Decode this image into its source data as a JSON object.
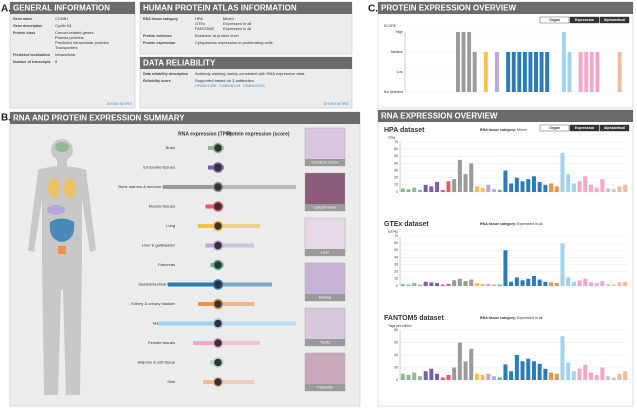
{
  "panel_labels": [
    "A.",
    "B.",
    "C."
  ],
  "general": {
    "title": "GENERAL INFORMATION",
    "more": "SHOW MORE",
    "rows": [
      {
        "label": "Gene name",
        "lines": [
          [
            "CCNB1"
          ]
        ]
      },
      {
        "label": "Gene description",
        "lines": [
          [
            "Cyclin B1"
          ]
        ]
      },
      {
        "label": "Protein class",
        "lines": [
          [
            "Cancer-related genes"
          ],
          [
            "Plasma proteins"
          ],
          [
            "Predicted intracellular proteins"
          ],
          [
            "Transporters"
          ]
        ]
      },
      {
        "label": "Predicted localization",
        "lines": [
          [
            "Intracellular"
          ]
        ]
      },
      {
        "label": "Number of transcripts",
        "lines": [
          [
            8
          ]
        ]
      }
    ]
  },
  "hpa_info": {
    "title": "HUMAN PROTEIN ATLAS INFORMATION",
    "rows": [
      {
        "label": "RNA tissue category",
        "lines": [
          [
            "HPA",
            "Mixed"
          ],
          [
            "GTEx",
            "Expressed in all"
          ],
          [
            "FANTOM5",
            "Expressed in all"
          ]
        ]
      },
      {
        "label": "Protein evidence",
        "lines": [
          [
            "Evidence at protein level"
          ]
        ]
      },
      {
        "label": "Protein expression",
        "lines": [
          [
            "Cytoplasmic expression in proliferating cells."
          ]
        ]
      }
    ]
  },
  "reliability": {
    "title": "DATA RELIABILITY",
    "more": "SHOW MORE",
    "rows": [
      {
        "label": "Data reliability description",
        "lines": [
          [
            "Antibody staining mainly consistent with RNA expression data."
          ]
        ]
      },
      {
        "label": "Reliability score",
        "lines": [
          [
            "Supported based on 3 antibodies."
          ]
        ],
        "links": [
          "HPA001326",
          "CAB000115",
          "CAB003053"
        ]
      }
    ]
  },
  "summary": {
    "title": "RNA AND PROTEIN EXPRESSION SUMMARY",
    "rna_header": "RNA expression (TPM)",
    "protein_header": "Protein expression (score)",
    "tissues": [
      {
        "name": "Brain",
        "color": "#8fb996",
        "rna": 4,
        "protein": 2
      },
      {
        "name": "Endocrine tissues",
        "color": "#7a5ca8",
        "rna": 4,
        "protein": 2
      },
      {
        "name": "Bone marrow & immune system",
        "color": "#9a9a9a",
        "rna": 22,
        "protein": 26
      },
      {
        "name": "Muscle tissues",
        "color": "#e05a6b",
        "rna": 5,
        "protein": 1
      },
      {
        "name": "Lung",
        "color": "#f5c04a",
        "rna": 8,
        "protein": 14
      },
      {
        "name": "Liver & gallbladder",
        "color": "#b9a8dc",
        "rna": 5,
        "protein": 12
      },
      {
        "name": "Pancreas",
        "color": "#5db5a0",
        "rna": 3,
        "protein": 2
      },
      {
        "name": "Gastrointestinal tract",
        "color": "#2a7bb8",
        "rna": 20,
        "protein": 18
      },
      {
        "name": "Kidney & urinary bladder",
        "color": "#f0924a",
        "rna": 8,
        "protein": 12
      },
      {
        "name": "Male tissues",
        "color": "#9fd3ee",
        "rna": 24,
        "protein": 26
      },
      {
        "name": "Female tissues",
        "color": "#f3a6c8",
        "rna": 10,
        "protein": 14
      },
      {
        "name": "Adipose & soft tissue",
        "color": "#a8d8c8",
        "rna": 3,
        "protein": 2
      },
      {
        "name": "Skin",
        "color": "#f2b8a0",
        "rna": 6,
        "protein": 12
      }
    ],
    "images": [
      "Cerebral cortex",
      "Lymph node",
      "Liver",
      "Kidney",
      "Testis",
      "Placenta"
    ]
  },
  "bar_colors": [
    "#8fb996",
    "#8fb996",
    "#8fb996",
    "#8fb996",
    "#7a5ca8",
    "#7a5ca8",
    "#7a5ca8",
    "#e05a6b",
    "#e05a6b",
    "#9a9a9a",
    "#9a9a9a",
    "#9a9a9a",
    "#9a9a9a",
    "#f5c04a",
    "#f5c04a",
    "#b9a8dc",
    "#b9a8dc",
    "#5db5a0",
    "#2a7bb8",
    "#2a7bb8",
    "#2a7bb8",
    "#2a7bb8",
    "#2a7bb8",
    "#2a7bb8",
    "#2a7bb8",
    "#2a7bb8",
    "#f0924a",
    "#f0924a",
    "#9fd3ee",
    "#9fd3ee",
    "#9fd3ee",
    "#f3a6c8",
    "#f3a6c8",
    "#f3a6c8",
    "#f3a6c8",
    "#f3a6c8",
    "#c9c9c9",
    "#c9c9c9",
    "#f2b8a0",
    "#f2b8a0"
  ],
  "protein_overview": {
    "title": "PROTEIN EXPRESSION OVERVIEW",
    "tabs": [
      "Organ",
      "Expression",
      "Alphabetical"
    ],
    "score_label": "SCORE",
    "chart": {
      "type": "bar",
      "values": [
        0,
        0,
        0,
        0,
        0,
        0,
        0,
        0,
        0,
        3,
        3,
        3,
        2,
        0,
        2,
        0,
        2,
        0,
        2,
        2,
        2,
        2,
        2,
        2,
        2,
        2,
        0,
        0,
        3,
        2,
        0,
        2,
        2,
        2,
        2,
        0,
        0,
        0,
        2,
        0
      ],
      "ylim": [
        0,
        3
      ],
      "yticks": [
        {
          "value": 0,
          "label": "Not detected"
        },
        {
          "value": 1,
          "label": "Low"
        },
        {
          "value": 2,
          "label": "Medium"
        },
        {
          "value": 3,
          "label": "High"
        }
      ]
    }
  },
  "rna_overview": {
    "title": "RNA EXPRESSION OVERVIEW",
    "tabs": [
      "Organ",
      "Expression",
      "Alphabetical"
    ],
    "category_label": "RNA tissue category:",
    "charts": [
      {
        "type": "bar",
        "title": "HPA dataset",
        "category": "Mixed",
        "y_label": "TPM",
        "values": [
          5,
          4,
          6,
          3,
          10,
          8,
          14,
          3,
          15,
          18,
          45,
          25,
          40,
          8,
          6,
          10,
          4,
          3,
          30,
          12,
          20,
          15,
          18,
          22,
          14,
          10,
          12,
          8,
          55,
          25,
          12,
          15,
          22,
          10,
          6,
          18,
          5,
          4,
          8,
          10
        ],
        "ylim": [
          0,
          70
        ],
        "yticks": [
          0,
          10,
          20,
          30,
          40,
          50,
          60,
          70
        ]
      },
      {
        "type": "bar",
        "title": "GTEx dataset",
        "category": "Expressed in all",
        "y_label": "NTPM",
        "values": [
          3,
          2,
          4,
          2,
          6,
          5,
          4,
          2,
          3,
          8,
          10,
          7,
          9,
          4,
          3,
          3,
          2,
          2,
          50,
          6,
          12,
          8,
          10,
          14,
          9,
          6,
          5,
          4,
          60,
          12,
          6,
          8,
          10,
          5,
          4,
          7,
          3,
          2,
          5,
          6
        ],
        "ylim": [
          0,
          70
        ],
        "yticks": [
          0,
          10,
          20,
          30,
          40,
          50,
          60,
          70
        ]
      },
      {
        "type": "bar",
        "title": "FANTOM5 dataset",
        "category": "Expressed in all",
        "y_label": "Tags per million",
        "values": [
          10,
          8,
          12,
          6,
          14,
          18,
          10,
          4,
          8,
          20,
          60,
          30,
          50,
          10,
          8,
          10,
          6,
          4,
          25,
          14,
          40,
          30,
          34,
          30,
          26,
          18,
          12,
          10,
          70,
          28,
          14,
          18,
          24,
          12,
          8,
          20,
          6,
          4,
          10,
          14
        ],
        "ylim": [
          0,
          80
        ],
        "yticks": [
          0,
          20,
          40,
          60,
          80
        ]
      }
    ]
  }
}
